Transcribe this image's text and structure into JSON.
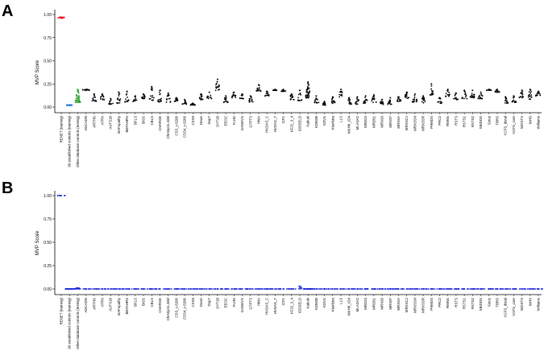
{
  "panels": [
    {
      "label": "A",
      "ylabel": "MVP Score",
      "yticks": [
        "0.00",
        "0.25",
        "0.50",
        "0.75",
        "1.00"
      ],
      "point_color": "#000000"
    },
    {
      "label": "B",
      "ylabel": "MVP Score",
      "yticks": [
        "0.00",
        "0.25",
        "0.50",
        "0.75",
        "1.00"
      ],
      "point_color": "#1f2ad8"
    }
  ],
  "colors": {
    "renet": "#e8001c",
    "n60": "#1f6fd1",
    "otherdb": "#2ca02c",
    "panel_b": "#1f2ad8",
    "points": "#000000"
  },
  "chart_data": [
    {
      "type": "scatter",
      "title": "",
      "panel": "A",
      "ylabel": "MVP Score",
      "ylim": [
        0,
        1.0
      ],
      "categories": [
        "RENET (training)",
        "60 established controls (training)",
        "Other database controls (testing)",
        "ADCADN",
        "ARTHS",
        "ATRX",
        "AUTS18",
        "BAFopathy",
        "BEFAHRS",
        "BFLS",
        "BISS",
        "CBLS",
        "CHARGE",
        "Chr16p11.2del",
        "CSS_c.6200",
        "CSS4_c.6200",
        "CSS9",
        "Down",
        "Dup7",
        "DYT28",
        "EEOC",
        "FLHS",
        "GADEVS",
        "GTPTS",
        "HMA",
        "HVDAS_C",
        "HVDAS_T",
        "ICF1",
        "KF22_3_4",
        "IDDSELD",
        "Kabuki",
        "KDM2B",
        "KDVS",
        "Kleefstra",
        "LLS",
        "MKHK_ID4",
        "MLASA2",
        "MRD23",
        "MRD51",
        "MRX93",
        "MRX97",
        "MRXSA",
        "MRXSCJ",
        "MRXSSH",
        "MRXSSR",
        "PHMDS",
        "PRC2",
        "RMNS",
        "RSTS",
        "RSTS1",
        "RSTS2",
        "SBIDDS",
        "Sotos",
        "TBRS",
        "VCFS_distal",
        "VCFS_core",
        "WDSTS",
        "WHS",
        "Williams"
      ],
      "series": [
        {
          "values": [
            0.97,
            0.02,
            0.05,
            0.19,
            0.06,
            0.08,
            0.03,
            0.04,
            0.05,
            0.06,
            0.09,
            0.07,
            0.05,
            0.05,
            0.06,
            0.03,
            0.02,
            0.08,
            0.09,
            0.18,
            0.05,
            0.1,
            0.09,
            0.05,
            0.17,
            0.12,
            0.18,
            0.17,
            0.08,
            0.07,
            0.1,
            0.04,
            0.02,
            0.04,
            0.1,
            0.03,
            0.03,
            0.04,
            0.05,
            0.03,
            0.03,
            0.06,
            0.09,
            0.05,
            0.04,
            0.13,
            0.04,
            0.11,
            0.08,
            0.09,
            0.1,
            0.09,
            0.18,
            0.16,
            0.04,
            0.05,
            0.1,
            0.08,
            0.12
          ]
        },
        {
          "values": [
            0.96,
            0.02,
            0.19,
            0.18,
            0.14,
            0.14,
            0.09,
            0.16,
            0.17,
            0.12,
            0.14,
            0.22,
            0.18,
            0.15,
            0.1,
            0.08,
            0.04,
            0.14,
            0.16,
            0.3,
            0.12,
            0.16,
            0.14,
            0.12,
            0.24,
            0.17,
            0.19,
            0.19,
            0.14,
            0.18,
            0.27,
            0.12,
            0.06,
            0.11,
            0.19,
            0.1,
            0.11,
            0.12,
            0.13,
            0.08,
            0.1,
            0.11,
            0.16,
            0.14,
            0.12,
            0.25,
            0.1,
            0.19,
            0.15,
            0.18,
            0.18,
            0.16,
            0.19,
            0.19,
            0.11,
            0.12,
            0.18,
            0.19,
            0.17
          ]
        }
      ]
    },
    {
      "type": "scatter",
      "title": "",
      "panel": "B",
      "ylabel": "MVP Score",
      "ylim": [
        0,
        1.0
      ],
      "categories": [
        "RENET (training)",
        "60 established controls (training)",
        "Other database controls (testing)",
        "ADCADN",
        "ARTHS",
        "ATRX",
        "AUTS18",
        "BAFopathy",
        "BEFAHRS",
        "BFLS",
        "BISS",
        "CBLS",
        "CHARGE",
        "Chr16p11.2del",
        "CSS_c.6200",
        "CSS4_c.6200",
        "CSS9",
        "Down",
        "Dup7",
        "DYT28",
        "EEOC",
        "FLHS",
        "GADEVS",
        "GTPTS",
        "HMA",
        "HVDAS_C",
        "HVDAS_T",
        "ICF1",
        "KF22_3_4",
        "IDDSELD",
        "Kabuki",
        "KDM2B",
        "KDVS",
        "Kleefstra",
        "LLS",
        "MKHK_ID4",
        "MLASA2",
        "MRD23",
        "MRD51",
        "MRX93",
        "MRX97",
        "MRXSA",
        "MRXSCJ",
        "MRXSSH",
        "MRXSSR",
        "PHMDS",
        "PRC2",
        "RMNS",
        "RSTS",
        "RSTS1",
        "RSTS2",
        "SBIDDS",
        "Sotos",
        "TBRS",
        "VCFS_distal",
        "VCFS_core",
        "WDSTS",
        "WHS",
        "Williams"
      ],
      "series": [
        {
          "values": [
            1.0,
            0.0,
            0.0,
            0.0,
            0.0,
            0.0,
            0.0,
            0.0,
            0.0,
            0.0,
            0.0,
            0.0,
            0.0,
            0.0,
            0.0,
            0.0,
            0.0,
            0.0,
            0.0,
            0.0,
            0.0,
            0.0,
            0.0,
            0.0,
            0.0,
            0.0,
            0.0,
            0.0,
            0.0,
            0.0,
            0.0,
            0.0,
            0.0,
            0.0,
            0.0,
            0.0,
            0.0,
            0.0,
            0.0,
            0.0,
            0.0,
            0.0,
            0.0,
            0.0,
            0.0,
            0.0,
            0.0,
            0.0,
            0.0,
            0.0,
            0.0,
            0.0,
            0.0,
            0.0,
            0.0,
            0.0,
            0.0,
            0.0,
            0.0
          ]
        },
        {
          "values": [
            1.0,
            0.0,
            0.01,
            0.0,
            0.0,
            0.0,
            0.0,
            0.0,
            0.0,
            0.0,
            0.0,
            0.0,
            0.0,
            0.0,
            0.0,
            0.0,
            0.0,
            0.0,
            0.0,
            0.0,
            0.0,
            0.0,
            0.0,
            0.0,
            0.0,
            0.0,
            0.0,
            0.0,
            0.0,
            0.03,
            0.0,
            0.0,
            0.0,
            0.0,
            0.0,
            0.0,
            0.0,
            0.0,
            0.0,
            0.0,
            0.0,
            0.0,
            0.0,
            0.0,
            0.0,
            0.0,
            0.0,
            0.0,
            0.0,
            0.0,
            0.0,
            0.0,
            0.0,
            0.0,
            0.0,
            0.0,
            0.0,
            0.0,
            0.0
          ]
        }
      ]
    }
  ]
}
